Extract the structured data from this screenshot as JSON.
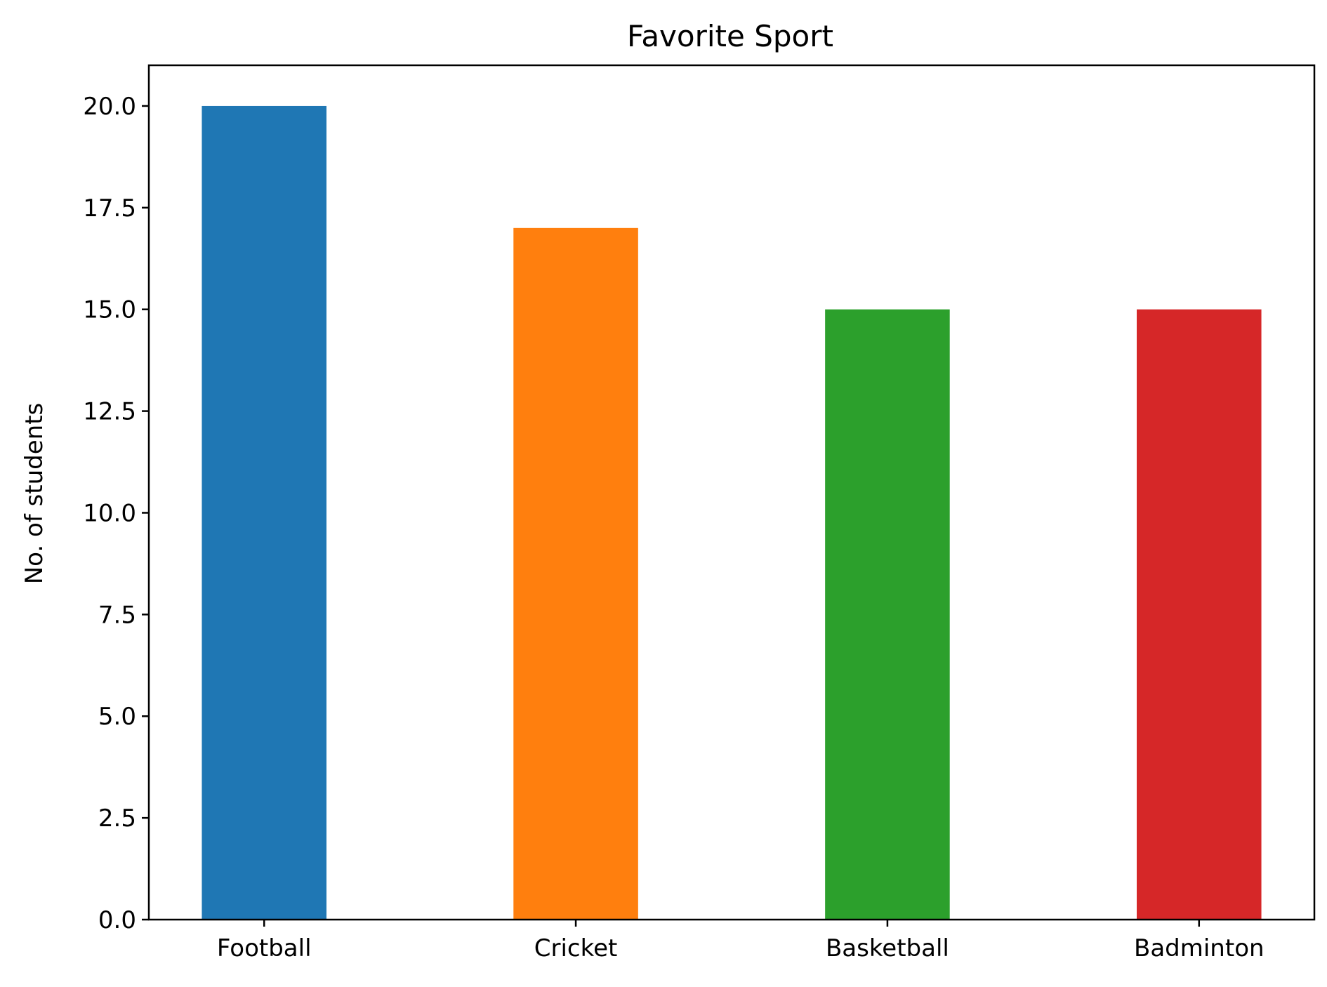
{
  "chart_data": {
    "type": "bar",
    "title": "Favorite Sport",
    "xlabel": "",
    "ylabel": "No. of students",
    "categories": [
      "Football",
      "Cricket",
      "Basketball",
      "Badminton"
    ],
    "values": [
      20,
      17,
      15,
      15
    ],
    "colors": [
      "#1f77b4",
      "#ff7f0e",
      "#2ca02c",
      "#d62728"
    ],
    "ylim": [
      0,
      21
    ],
    "yticks": [
      0,
      2.5,
      5,
      7.5,
      10,
      12.5,
      15,
      17.5,
      20
    ],
    "ytick_labels": [
      "0.0",
      "2.5",
      "5.0",
      "7.5",
      "10.0",
      "12.5",
      "15.0",
      "17.5",
      "20.0"
    ],
    "grid": false,
    "legend": "none"
  }
}
